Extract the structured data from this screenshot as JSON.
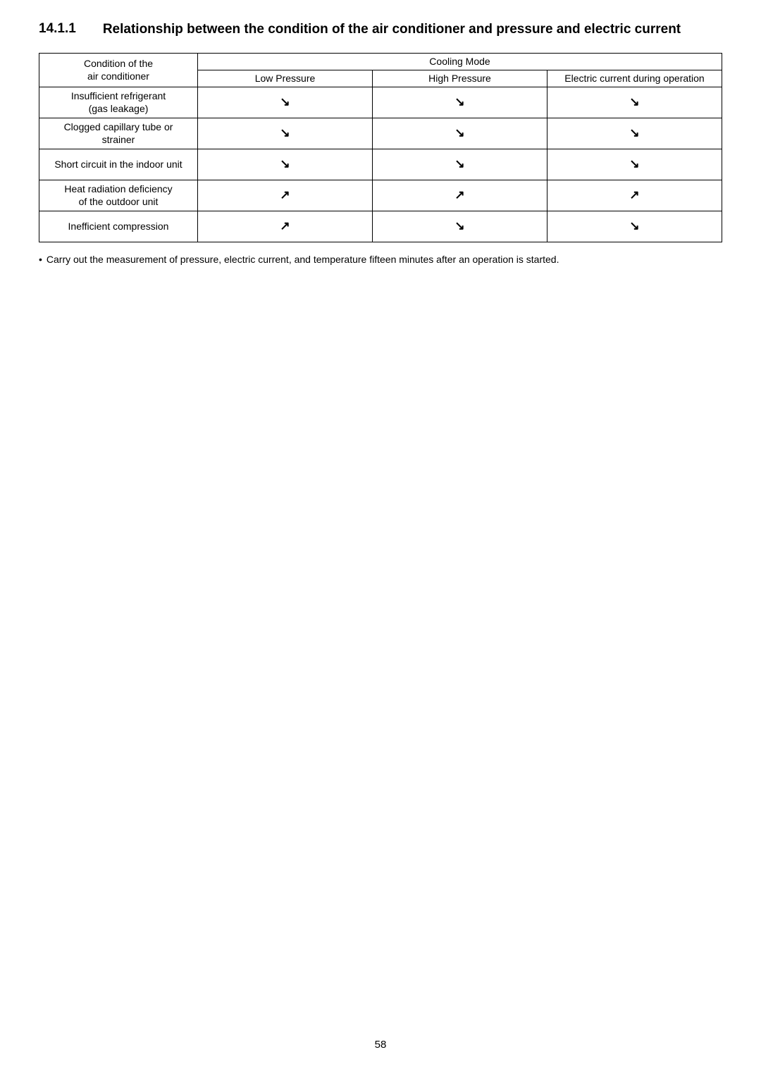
{
  "heading": {
    "number": "14.1.1",
    "text": "Relationship between the condition of the air conditioner and pressure and electric current"
  },
  "table": {
    "condition_header_line1": "Condition of the",
    "condition_header_line2": "air conditioner",
    "cooling_mode_header": "Cooling Mode",
    "columns": [
      "Low Pressure",
      "High Pressure",
      "Electric current during operation"
    ],
    "rows": [
      {
        "condition_line1": "Insufficient refrigerant",
        "condition_line2": "(gas leakage)",
        "low": "↘",
        "high": "↘",
        "current": "↘"
      },
      {
        "condition_line1": "Clogged capillary tube or",
        "condition_line2": "strainer",
        "low": "↘",
        "high": "↘",
        "current": "↘"
      },
      {
        "condition_line1": "Short circuit in the indoor unit",
        "condition_line2": "",
        "low": "↘",
        "high": "↘",
        "current": "↘"
      },
      {
        "condition_line1": "Heat radiation deficiency",
        "condition_line2": "of the outdoor unit",
        "low": "↗",
        "high": "↗",
        "current": "↗"
      },
      {
        "condition_line1": "Inefficient compression",
        "condition_line2": "",
        "low": "↗",
        "high": "↘",
        "current": "↘"
      }
    ]
  },
  "footnote": "Carry out the measurement of pressure, electric current, and temperature fifteen minutes after an operation is started.",
  "page_number": "58"
}
